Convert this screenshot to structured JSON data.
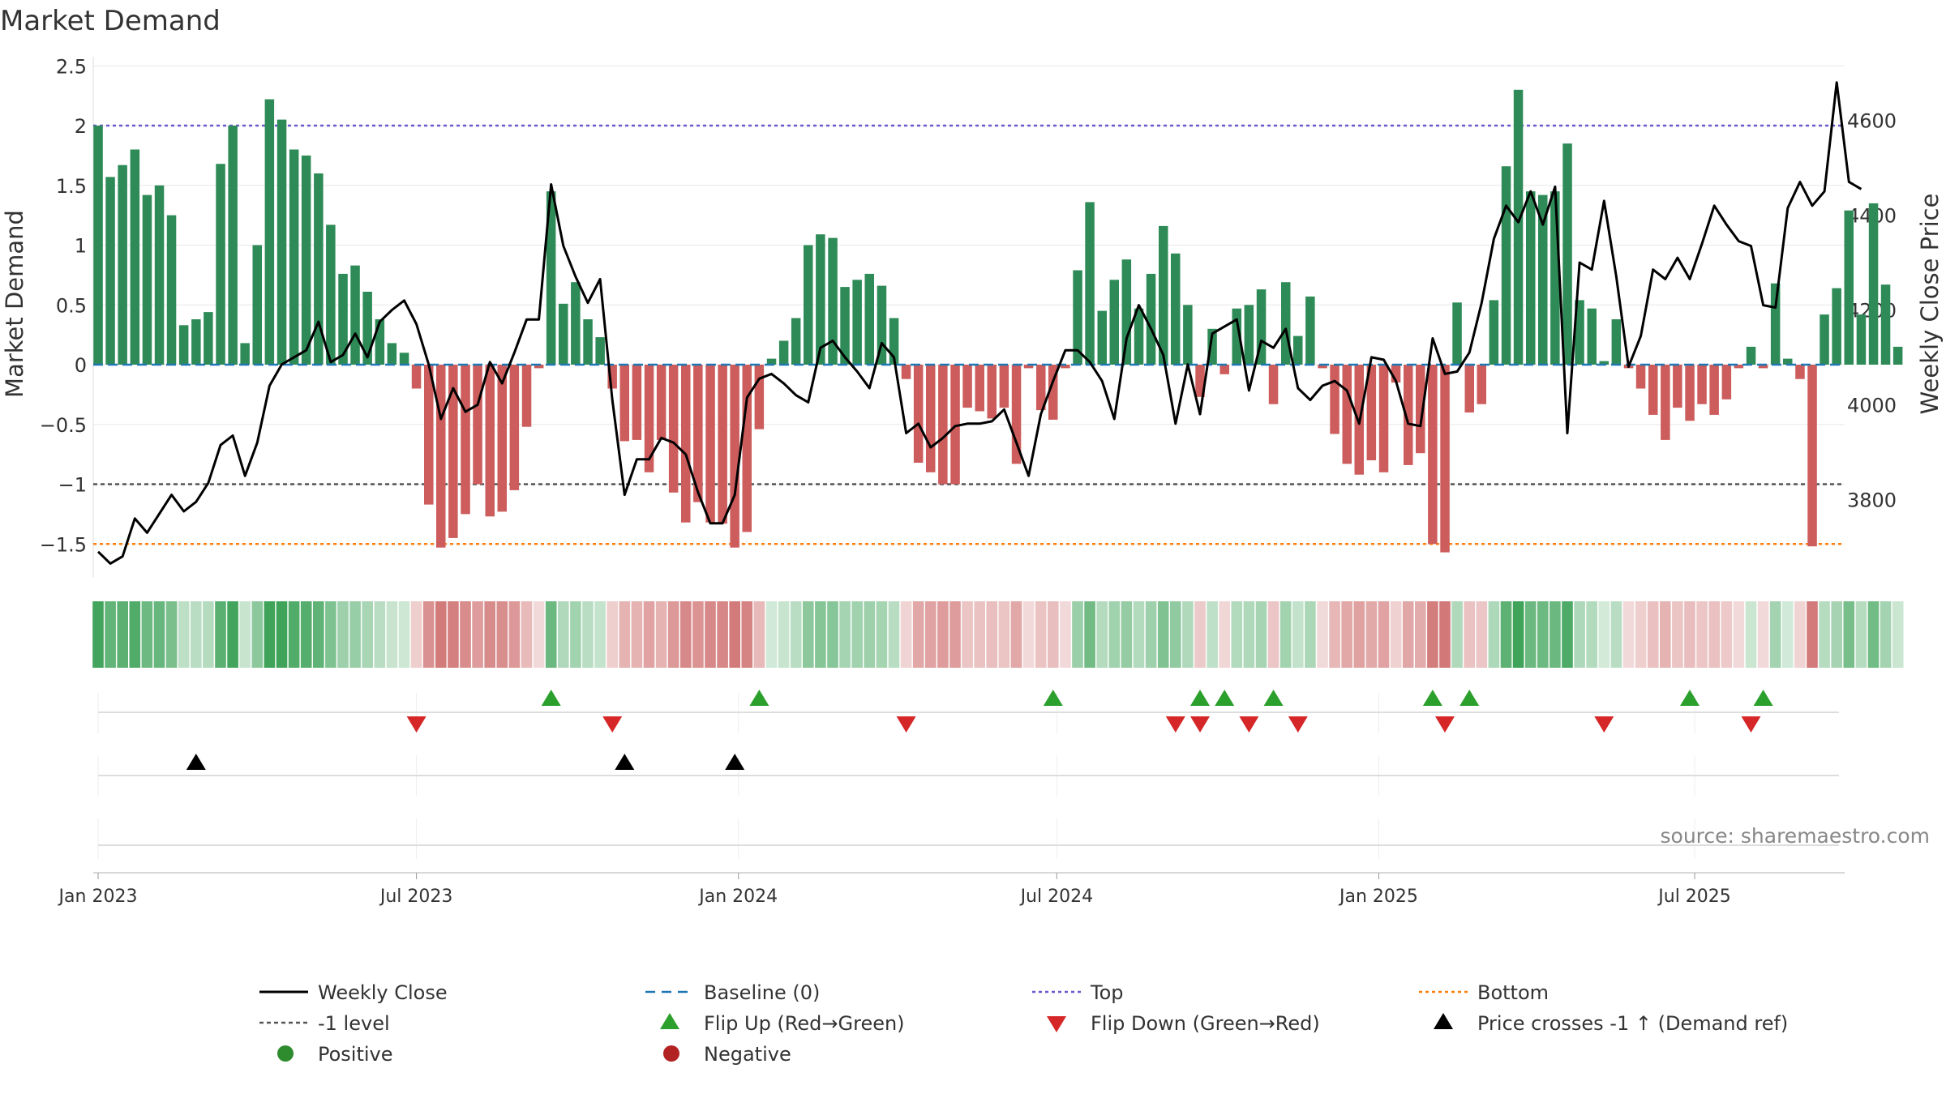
{
  "chart_data": {
    "type": "bar",
    "title": "Market Demand",
    "ylabel": "Market Demand",
    "y2label": "Weekly Close Price",
    "ylim": [
      -1.8,
      2.5
    ],
    "y2lim": [
      3640,
      4700
    ],
    "yticks": [
      {
        "v": 2.5,
        "label": "2.5"
      },
      {
        "v": 2,
        "label": "2"
      },
      {
        "v": 1.5,
        "label": "1.5"
      },
      {
        "v": 1,
        "label": "1"
      },
      {
        "v": 0.5,
        "label": "0.5"
      },
      {
        "v": 0,
        "label": "0"
      },
      {
        "v": -0.5,
        "label": "−0.5"
      },
      {
        "v": -1,
        "label": "−1"
      },
      {
        "v": -1.5,
        "label": "−1.5"
      }
    ],
    "y2ticks": [
      {
        "v": 4600,
        "label": "4600"
      },
      {
        "v": 4400,
        "label": "4400"
      },
      {
        "v": 4200,
        "label": "4200"
      },
      {
        "v": 4000,
        "label": "4000"
      },
      {
        "v": 3800,
        "label": "3800"
      }
    ],
    "xticks": [
      {
        "w": 0,
        "label": "Jan 2023"
      },
      {
        "w": 26,
        "label": "Jul 2023"
      },
      {
        "w": 52.3,
        "label": "Jan 2024"
      },
      {
        "w": 78.3,
        "label": "Jul 2024"
      },
      {
        "w": 104.6,
        "label": "Jan 2025"
      },
      {
        "w": 130.4,
        "label": "Jul 2025"
      }
    ],
    "levels": {
      "top": 2,
      "one": -1,
      "bottom": -1.5
    },
    "demand": [
      2.0,
      1.57,
      1.67,
      1.8,
      1.42,
      1.5,
      1.25,
      0.33,
      0.38,
      0.44,
      1.68,
      2.0,
      0.18,
      1.0,
      2.22,
      2.05,
      1.8,
      1.75,
      1.6,
      1.17,
      0.76,
      0.83,
      0.61,
      0.38,
      0.18,
      0.1,
      -0.2,
      -1.17,
      -1.53,
      -1.45,
      -1.25,
      -1.0,
      -1.27,
      -1.23,
      -1.05,
      -0.52,
      -0.03,
      1.45,
      0.51,
      0.69,
      0.38,
      0.23,
      -0.2,
      -0.64,
      -0.63,
      -0.9,
      -0.63,
      -1.07,
      -1.32,
      -1.15,
      -1.32,
      -1.33,
      -1.53,
      -1.4,
      -0.54,
      0.05,
      0.2,
      0.39,
      1.0,
      1.09,
      1.06,
      0.65,
      0.71,
      0.76,
      0.66,
      0.39,
      -0.12,
      -0.82,
      -0.9,
      -1.0,
      -1.0,
      -0.36,
      -0.39,
      -0.45,
      -0.36,
      -0.83,
      -0.03,
      -0.38,
      -0.46,
      -0.03,
      0.79,
      1.36,
      0.45,
      0.71,
      0.88,
      0.47,
      0.76,
      1.16,
      0.93,
      0.5,
      -0.27,
      0.3,
      -0.08,
      0.47,
      0.5,
      0.63,
      -0.33,
      0.69,
      0.24,
      0.57,
      -0.03,
      -0.58,
      -0.83,
      -0.92,
      -0.8,
      -0.9,
      -0.15,
      -0.84,
      -0.74,
      -1.5,
      -1.57,
      0.52,
      -0.4,
      -0.33,
      0.54,
      1.66,
      2.3,
      1.45,
      1.42,
      1.45,
      1.85,
      0.54,
      0.47,
      0.03,
      0.38,
      -0.03,
      -0.2,
      -0.42,
      -0.63,
      -0.36,
      -0.47,
      -0.33,
      -0.42,
      -0.29,
      -0.03,
      0.15,
      -0.03,
      0.68,
      0.05,
      -0.12,
      -1.52,
      0.42,
      0.64,
      1.29,
      0.42,
      1.35,
      0.67,
      0.15
    ],
    "close": [
      3690,
      3665,
      3680,
      3760,
      3730,
      3770,
      3810,
      3775,
      3795,
      3835,
      3915,
      3935,
      3850,
      3920,
      4040,
      4085,
      4100,
      4115,
      4175,
      4090,
      4105,
      4150,
      4100,
      4175,
      4200,
      4220,
      4170,
      4085,
      3970,
      4035,
      3985,
      4000,
      4090,
      4045,
      4110,
      4180,
      4180,
      4465,
      4335,
      4270,
      4215,
      4265,
      4010,
      3810,
      3885,
      3885,
      3930,
      3920,
      3895,
      3815,
      3750,
      3750,
      3810,
      4015,
      4055,
      4065,
      4045,
      4020,
      4005,
      4120,
      4135,
      4100,
      4070,
      4035,
      4130,
      4100,
      3940,
      3960,
      3910,
      3930,
      3955,
      3960,
      3960,
      3965,
      3990,
      3920,
      3850,
      3980,
      4050,
      4115,
      4115,
      4090,
      4050,
      3970,
      4140,
      4210,
      4160,
      4105,
      3960,
      4085,
      3980,
      4150,
      4165,
      4180,
      4030,
      4135,
      4120,
      4160,
      4035,
      4010,
      4040,
      4050,
      4030,
      3960,
      4100,
      4095,
      4050,
      3960,
      3955,
      4140,
      4065,
      4070,
      4110,
      4215,
      4350,
      4420,
      4385,
      4450,
      4380,
      4460,
      3940,
      4300,
      4285,
      4430,
      4270,
      4080,
      4145,
      4285,
      4265,
      4310,
      4265,
      4340,
      4420,
      4380,
      4345,
      4335,
      4210,
      4205,
      4415,
      4470,
      4420,
      4450,
      4680,
      4470,
      4455
    ],
    "flip_up": [
      37,
      54,
      78,
      90,
      92,
      96,
      109,
      112,
      130,
      136
    ],
    "flip_down": [
      26,
      42,
      66,
      88,
      90,
      94,
      98,
      110,
      123,
      135
    ],
    "price_cross": [
      8,
      43,
      52
    ],
    "source_note": "source: sharemaestro.com",
    "colors": {
      "positive": "#2e8b57",
      "negative": "#cd5c5c",
      "close_line": "#000000",
      "baseline": "#1f77b4",
      "top": "#6a5acd",
      "minus_one": "#555555",
      "bottom": "#ff7f0e",
      "flip_up": "#2ca02c",
      "flip_down": "#d62728",
      "price_cross": "#000000",
      "dot_positive": "#2e8b2e",
      "dot_negative": "#b22222"
    },
    "legend": [
      {
        "key": "close",
        "label": "Weekly Close"
      },
      {
        "key": "baseline",
        "label": "Baseline (0)"
      },
      {
        "key": "top",
        "label": "Top"
      },
      {
        "key": "bottom",
        "label": "Bottom"
      },
      {
        "key": "minus1",
        "label": "-1 level"
      },
      {
        "key": "flipup",
        "label": "Flip Up (Red→Green)"
      },
      {
        "key": "flipdown",
        "label": "Flip Down (Green→Red)"
      },
      {
        "key": "pricecross",
        "label": "Price crosses -1 ↑ (Demand ref)"
      },
      {
        "key": "positive",
        "label": "Positive"
      },
      {
        "key": "negative",
        "label": "Negative"
      }
    ]
  }
}
